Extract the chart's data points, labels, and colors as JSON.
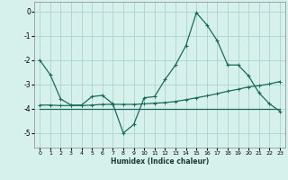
{
  "xlabel": "Humidex (Indice chaleur)",
  "bg_color": "#d6f0ec",
  "grid_color": "#aad4cc",
  "line_color": "#1a6b5a",
  "x_ticks": [
    0,
    1,
    2,
    3,
    4,
    5,
    6,
    7,
    8,
    9,
    10,
    11,
    12,
    13,
    14,
    15,
    16,
    17,
    18,
    19,
    20,
    21,
    22,
    23
  ],
  "ylim": [
    -5.6,
    0.4
  ],
  "xlim": [
    -0.5,
    23.5
  ],
  "yticks": [
    0,
    -1,
    -2,
    -3,
    -4,
    -5
  ],
  "series1_x": [
    0,
    1,
    2,
    3,
    4,
    5,
    6,
    7,
    8,
    9,
    10,
    11,
    12,
    13,
    14,
    15,
    16,
    17,
    18,
    19,
    20,
    21,
    22,
    23
  ],
  "series1_y": [
    -2.0,
    -2.6,
    -3.6,
    -3.85,
    -3.85,
    -3.5,
    -3.45,
    -3.8,
    -5.0,
    -4.65,
    -3.55,
    -3.5,
    -2.8,
    -2.2,
    -1.4,
    -0.05,
    -0.55,
    -1.2,
    -2.2,
    -2.2,
    -2.65,
    -3.35,
    -3.8,
    -4.1
  ],
  "series2_x": [
    0,
    1,
    2,
    3,
    4,
    5,
    6,
    7,
    8,
    9,
    10,
    11,
    12,
    13,
    14,
    15,
    16,
    17,
    18,
    19,
    20,
    21,
    22,
    23
  ],
  "series2_y": [
    -3.85,
    -3.85,
    -3.87,
    -3.87,
    -3.87,
    -3.85,
    -3.82,
    -3.82,
    -3.82,
    -3.82,
    -3.8,
    -3.77,
    -3.75,
    -3.7,
    -3.63,
    -3.55,
    -3.47,
    -3.38,
    -3.28,
    -3.2,
    -3.1,
    -3.05,
    -2.98,
    -2.88
  ],
  "series3_x": [
    0,
    1,
    2,
    3,
    4,
    5,
    6,
    7,
    8,
    9,
    10,
    11,
    12,
    13,
    14,
    15,
    16,
    17,
    18,
    19,
    20,
    21,
    22,
    23
  ],
  "series3_y": [
    -4.0,
    -4.0,
    -4.0,
    -4.0,
    -4.0,
    -4.0,
    -4.0,
    -4.0,
    -4.0,
    -4.0,
    -4.0,
    -4.0,
    -4.0,
    -4.0,
    -4.0,
    -4.0,
    -4.0,
    -4.0,
    -4.0,
    -4.0,
    -4.0,
    -4.0,
    -4.0,
    -4.0
  ]
}
